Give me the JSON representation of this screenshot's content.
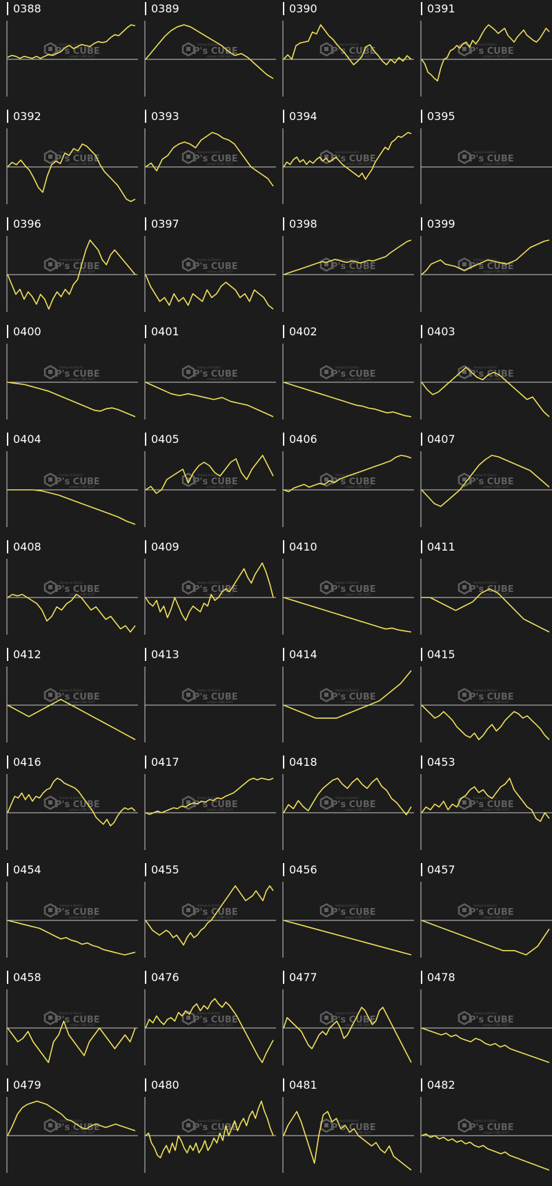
{
  "watermark": {
    "brand": "P's CUBE",
    "tagline": "Sankyo & Daiichi",
    "subline": "unique CUBE SLOT"
  },
  "colors": {
    "background": "#1c1c1c",
    "line": "#f2e25c",
    "axis": "#cccccc",
    "label": "#ffffff"
  },
  "chart_data": [
    {
      "type": "line",
      "title": "0388",
      "y": [
        2,
        4,
        3,
        1,
        3,
        2,
        1,
        3,
        1,
        3,
        5,
        4,
        6,
        8,
        12,
        14,
        11,
        13,
        15,
        14,
        13,
        16,
        18,
        17,
        18,
        22,
        25,
        24,
        28,
        32,
        35,
        34
      ]
    },
    {
      "type": "line",
      "title": "0389",
      "y": [
        0,
        4,
        8,
        12,
        15,
        17,
        18,
        17,
        15,
        13,
        11,
        9,
        7,
        4,
        2,
        3,
        1,
        -2,
        -5,
        -8,
        -10
      ]
    },
    {
      "type": "line",
      "title": "0390",
      "y": [
        0,
        5,
        0,
        15,
        18,
        19,
        20,
        30,
        28,
        38,
        32,
        26,
        22,
        16,
        11,
        6,
        0,
        -6,
        -2,
        3,
        14,
        16,
        9,
        4,
        -2,
        -6,
        0,
        -4,
        2,
        -2,
        4,
        0
      ]
    },
    {
      "type": "line",
      "title": "0391",
      "y": [
        0,
        -5,
        -15,
        -18,
        -22,
        -25,
        -10,
        0,
        2,
        10,
        12,
        16,
        13,
        18,
        20,
        14,
        22,
        18,
        23,
        30,
        36,
        40,
        37,
        34,
        30,
        33,
        36,
        28,
        24,
        20,
        26,
        30,
        34,
        28,
        25,
        22,
        20,
        24,
        30,
        36,
        32
      ]
    },
    {
      "type": "line",
      "title": "0392",
      "y": [
        0,
        4,
        2,
        6,
        1,
        -3,
        -10,
        -18,
        -22,
        -8,
        2,
        5,
        3,
        12,
        10,
        16,
        14,
        20,
        18,
        14,
        10,
        2,
        -4,
        -8,
        -12,
        -16,
        -22,
        -28,
        -30,
        -28
      ]
    },
    {
      "type": "line",
      "title": "0393",
      "y": [
        0,
        2,
        -2,
        4,
        6,
        10,
        12,
        13,
        12,
        10,
        14,
        16,
        18,
        17,
        15,
        14,
        12,
        8,
        4,
        0,
        -2,
        -4,
        -6,
        -10
      ]
    },
    {
      "type": "line",
      "title": "0394",
      "y": [
        0,
        4,
        2,
        6,
        8,
        4,
        6,
        2,
        5,
        3,
        6,
        8,
        5,
        7,
        4,
        6,
        8,
        5,
        2,
        0,
        -2,
        -4,
        -6,
        -8,
        -5,
        -10,
        -6,
        -2,
        4,
        8,
        12,
        16,
        14,
        20,
        22,
        25,
        24,
        26,
        28,
        27
      ]
    },
    {
      "type": "line",
      "title": "0395",
      "y": []
    },
    {
      "type": "line",
      "title": "0396",
      "y": [
        0,
        -4,
        -8,
        -6,
        -10,
        -7,
        -9,
        -12,
        -8,
        -10,
        -14,
        -10,
        -7,
        -9,
        -6,
        -8,
        -4,
        -2,
        4,
        10,
        14,
        12,
        10,
        6,
        4,
        8,
        10,
        8,
        6,
        4,
        2,
        0
      ]
    },
    {
      "type": "line",
      "title": "0397",
      "y": [
        0,
        -6,
        -10,
        -14,
        -12,
        -16,
        -10,
        -14,
        -12,
        -16,
        -10,
        -12,
        -14,
        -8,
        -12,
        -10,
        -6,
        -4,
        -6,
        -8,
        -12,
        -10,
        -14,
        -8,
        -10,
        -12,
        -16,
        -18
      ]
    },
    {
      "type": "line",
      "title": "0398",
      "y": [
        0,
        2,
        4,
        6,
        8,
        10,
        12,
        14,
        16,
        18,
        17,
        19,
        21,
        20,
        18,
        17,
        19,
        18,
        16,
        18,
        20,
        19,
        21,
        23,
        25,
        30,
        34,
        38,
        42,
        46,
        48
      ]
    },
    {
      "type": "line",
      "title": "0399",
      "y": [
        0,
        4,
        10,
        12,
        14,
        10,
        9,
        8,
        6,
        4,
        6,
        8,
        10,
        12,
        14,
        13,
        12,
        11,
        10,
        12,
        14,
        18,
        22,
        26,
        28,
        30,
        32,
        33
      ]
    },
    {
      "type": "line",
      "title": "0400",
      "y": [
        0,
        -1,
        -2,
        -3,
        -5,
        -7,
        -9,
        -11,
        -14,
        -17,
        -20,
        -23,
        -26,
        -29,
        -32,
        -35,
        -36,
        -33,
        -32,
        -34,
        -37,
        -40,
        -43
      ]
    },
    {
      "type": "line",
      "title": "0401",
      "y": [
        0,
        -2,
        -4,
        -6,
        -7,
        -6,
        -7,
        -8,
        -9,
        -8,
        -10,
        -11,
        -12,
        -14,
        -16,
        -18
      ]
    },
    {
      "type": "line",
      "title": "0402",
      "y": [
        0,
        -2,
        -4,
        -6,
        -8,
        -10,
        -12,
        -14,
        -16,
        -18,
        -20,
        -22,
        -24,
        -25,
        -27,
        -28,
        -30,
        -32,
        -31,
        -33,
        -35,
        -36
      ]
    },
    {
      "type": "line",
      "title": "0403",
      "y": [
        0,
        -3,
        -5,
        -4,
        -2,
        0,
        2,
        4,
        6,
        4,
        2,
        1,
        3,
        4,
        3,
        1,
        -1,
        -3,
        -5,
        -7,
        -6,
        -9,
        -12,
        -14
      ]
    },
    {
      "type": "line",
      "title": "0404",
      "y": [
        0,
        0,
        0,
        0,
        -1,
        -3,
        -5,
        -8,
        -11,
        -14,
        -17,
        -20,
        -23,
        -26,
        -30,
        -33
      ]
    },
    {
      "type": "line",
      "title": "0405",
      "y": [
        0,
        2,
        -2,
        0,
        6,
        8,
        10,
        12,
        4,
        10,
        14,
        16,
        14,
        10,
        8,
        12,
        16,
        18,
        10,
        6,
        12,
        16,
        20,
        14,
        8
      ]
    },
    {
      "type": "line",
      "title": "0406",
      "y": [
        0,
        -2,
        2,
        4,
        6,
        3,
        5,
        7,
        6,
        10,
        8,
        12,
        14,
        16,
        18,
        20,
        22,
        24,
        26,
        28,
        30,
        32,
        36,
        38,
        37,
        35
      ]
    },
    {
      "type": "line",
      "title": "0407",
      "y": [
        0,
        -5,
        -10,
        -12,
        -8,
        -4,
        0,
        6,
        12,
        18,
        22,
        25,
        24,
        22,
        20,
        18,
        16,
        14,
        10,
        6,
        2
      ]
    },
    {
      "type": "line",
      "title": "0408",
      "y": [
        0,
        2,
        1,
        2,
        0,
        -2,
        -4,
        -8,
        -15,
        -12,
        -6,
        -8,
        -4,
        -2,
        2,
        0,
        -4,
        -8,
        -6,
        -10,
        -14,
        -12,
        -16,
        -20,
        -18,
        -22,
        -18
      ]
    },
    {
      "type": "line",
      "title": "0409",
      "y": [
        0,
        -4,
        -6,
        -2,
        -10,
        -6,
        -14,
        -8,
        0,
        -6,
        -12,
        -16,
        -10,
        -6,
        -8,
        -10,
        -4,
        -6,
        2,
        -2,
        0,
        4,
        6,
        4,
        8,
        12,
        16,
        20,
        14,
        10,
        16,
        20,
        24,
        18,
        10,
        0
      ]
    },
    {
      "type": "line",
      "title": "0410",
      "y": [
        0,
        -2,
        -4,
        -6,
        -8,
        -10,
        -12,
        -14,
        -16,
        -18,
        -20,
        -22,
        -24,
        -26,
        -28,
        -30,
        -32,
        -31,
        -33,
        -34,
        -35
      ]
    },
    {
      "type": "line",
      "title": "0411",
      "y": [
        0,
        0,
        -1,
        -2,
        -3,
        -2,
        -1,
        1,
        2,
        1,
        -1,
        -3,
        -5,
        -6,
        -7,
        -8
      ]
    },
    {
      "type": "line",
      "title": "0412",
      "y": [
        0,
        -1,
        -2,
        -1,
        0,
        1,
        0,
        -1,
        -2,
        -3,
        -4,
        -5,
        -6
      ]
    },
    {
      "type": "line",
      "title": "0413",
      "y": []
    },
    {
      "type": "line",
      "title": "0414",
      "y": [
        0,
        -1,
        -2,
        -3,
        -3,
        -3,
        -2,
        -1,
        0,
        1,
        3,
        5,
        8
      ]
    },
    {
      "type": "line",
      "title": "0415",
      "y": [
        0,
        -4,
        -8,
        -12,
        -10,
        -6,
        -10,
        -14,
        -20,
        -24,
        -28,
        -30,
        -26,
        -32,
        -28,
        -22,
        -18,
        -24,
        -20,
        -14,
        -10,
        -6,
        -8,
        -12,
        -10,
        -14,
        -18,
        -22,
        -28,
        -32
      ]
    },
    {
      "type": "line",
      "title": "0416",
      "y": [
        0,
        10,
        20,
        18,
        24,
        16,
        22,
        14,
        20,
        18,
        24,
        28,
        30,
        38,
        42,
        40,
        36,
        34,
        32,
        30,
        26,
        20,
        14,
        8,
        2,
        -6,
        -10,
        -14,
        -8,
        -16,
        -12,
        -4,
        2,
        6,
        4,
        6,
        2
      ]
    },
    {
      "type": "line",
      "title": "0417",
      "y": [
        0,
        -2,
        0,
        2,
        0,
        2,
        4,
        6,
        5,
        8,
        7,
        10,
        12,
        11,
        14,
        13,
        16,
        15,
        18,
        17,
        20,
        22,
        24,
        28,
        32,
        36,
        40,
        42,
        40,
        42,
        41,
        40,
        42
      ]
    },
    {
      "type": "line",
      "title": "0418",
      "y": [
        0,
        8,
        4,
        12,
        6,
        2,
        10,
        18,
        24,
        28,
        32,
        34,
        28,
        24,
        30,
        34,
        28,
        24,
        30,
        34,
        26,
        22,
        14,
        10,
        4,
        -2,
        6
      ]
    },
    {
      "type": "line",
      "title": "0453",
      "y": [
        0,
        4,
        2,
        6,
        4,
        8,
        2,
        6,
        4,
        10,
        12,
        16,
        18,
        14,
        16,
        12,
        10,
        14,
        18,
        20,
        24,
        16,
        12,
        8,
        4,
        2,
        -4,
        -6,
        0,
        -4
      ]
    },
    {
      "type": "line",
      "title": "0454",
      "y": [
        0,
        -1,
        -2,
        -3,
        -4,
        -5,
        -6,
        -8,
        -10,
        -12,
        -14,
        -13,
        -15,
        -16,
        -18,
        -17,
        -19,
        -20,
        -22,
        -23,
        -24,
        -25,
        -26,
        -25,
        -24
      ]
    },
    {
      "type": "line",
      "title": "0455",
      "y": [
        0,
        -4,
        -8,
        -10,
        -12,
        -10,
        -8,
        -10,
        -14,
        -12,
        -16,
        -20,
        -14,
        -10,
        -14,
        -12,
        -8,
        -6,
        -2,
        0,
        4,
        8,
        12,
        16,
        20,
        24,
        28,
        24,
        20,
        16,
        18,
        20,
        24,
        20,
        16,
        24,
        28,
        24
      ]
    },
    {
      "type": "line",
      "title": "0456",
      "y": [
        0,
        -1,
        -2,
        -3,
        -4,
        -5,
        -6
      ]
    },
    {
      "type": "line",
      "title": "0457",
      "y": [
        0,
        -1,
        -2,
        -3,
        -4,
        -5,
        -6,
        -7,
        -7,
        -8,
        -6,
        -2
      ]
    },
    {
      "type": "line",
      "title": "0458",
      "y": [
        0,
        -2,
        -4,
        -3,
        -1,
        -4,
        -6,
        -8,
        -10,
        -4,
        -2,
        2,
        -2,
        -4,
        -6,
        -8,
        -4,
        -2,
        0,
        -2,
        -4,
        -6,
        -4,
        -2,
        -4,
        0
      ]
    },
    {
      "type": "line",
      "title": "0476",
      "y": [
        0,
        10,
        6,
        14,
        8,
        4,
        10,
        12,
        8,
        18,
        14,
        20,
        16,
        24,
        28,
        20,
        26,
        22,
        30,
        34,
        28,
        24,
        30,
        26,
        20,
        14,
        6,
        -2,
        -10,
        -18,
        -26,
        -34,
        -40,
        -30,
        -22,
        -14
      ]
    },
    {
      "type": "line",
      "title": "0477",
      "y": [
        0,
        6,
        4,
        2,
        0,
        -2,
        -6,
        -10,
        -12,
        -8,
        -4,
        -2,
        -4,
        0,
        2,
        4,
        0,
        -6,
        -4,
        0,
        4,
        8,
        12,
        10,
        6,
        2,
        4,
        10,
        12,
        8,
        4,
        0,
        -4,
        -8,
        -12,
        -16,
        -20
      ]
    },
    {
      "type": "line",
      "title": "0478",
      "y": [
        0,
        -2,
        -4,
        -6,
        -8,
        -6,
        -10,
        -8,
        -12,
        -14,
        -16,
        -12,
        -14,
        -18,
        -20,
        -18,
        -22,
        -20,
        -24,
        -26,
        -28,
        -30,
        -32,
        -34,
        -36,
        -38,
        -40
      ]
    },
    {
      "type": "line",
      "title": "0479",
      "y": [
        0,
        12,
        26,
        34,
        38,
        40,
        42,
        40,
        38,
        34,
        30,
        26,
        20,
        18,
        14,
        10,
        8,
        12,
        14,
        12,
        10,
        12,
        14,
        12,
        10,
        8,
        6
      ]
    },
    {
      "type": "line",
      "title": "0480",
      "y": [
        0,
        2,
        -6,
        -10,
        -16,
        -18,
        -12,
        -8,
        -14,
        -6,
        -12,
        0,
        -4,
        -10,
        -14,
        -8,
        -12,
        -6,
        -14,
        -10,
        -4,
        -12,
        -8,
        -2,
        -6,
        2,
        -4,
        8,
        0,
        6,
        12,
        4,
        10,
        14,
        8,
        16,
        20,
        14,
        22,
        28,
        20,
        14,
        6,
        0
      ]
    },
    {
      "type": "line",
      "title": "0481",
      "y": [
        0,
        6,
        10,
        14,
        8,
        0,
        -8,
        -16,
        0,
        12,
        14,
        8,
        10,
        4,
        6,
        2,
        4,
        0,
        -2,
        -4,
        -6,
        -4,
        -8,
        -10,
        -6,
        -12,
        -14,
        -16,
        -18,
        -20
      ]
    },
    {
      "type": "line",
      "title": "0482",
      "y": [
        0,
        2,
        -2,
        0,
        -4,
        -2,
        -6,
        -4,
        -8,
        -6,
        -10,
        -8,
        -12,
        -14,
        -12,
        -16,
        -18,
        -20,
        -22,
        -20,
        -24,
        -26,
        -28,
        -30,
        -32,
        -34,
        -36,
        -38,
        -40,
        -42
      ]
    }
  ]
}
